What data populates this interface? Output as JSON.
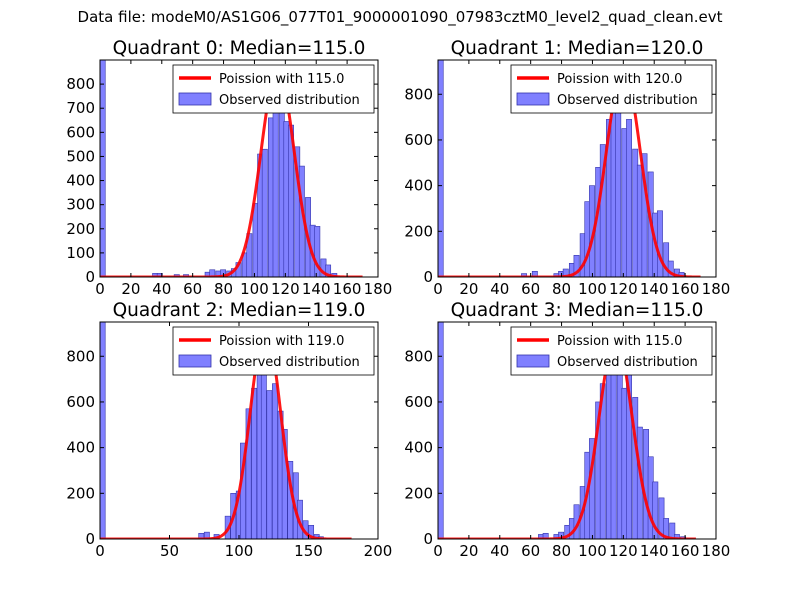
{
  "suptitle": "Data file: modeM0/AS1G06_077T01_9000001090_07983cztM0_level2_quad_clean.evt",
  "colors": {
    "bar_fill": "#8080ff",
    "bar_edge": "#3333aa",
    "fit_line": "#ff0000",
    "legend_line": "#ff0000"
  },
  "chart_data": [
    {
      "type": "bar",
      "title": "Quadrant 0: Median=115.0",
      "legend": [
        "Poission with 115.0",
        "Observed distribution"
      ],
      "xlim": [
        0,
        180
      ],
      "ylim": [
        0,
        900
      ],
      "xticks": [
        0,
        20,
        40,
        60,
        80,
        100,
        120,
        140,
        160,
        180
      ],
      "yticks": [
        0,
        100,
        200,
        300,
        400,
        500,
        600,
        700,
        800
      ],
      "bin_width": 3.4,
      "bins": [
        [
          0,
          900
        ],
        [
          34,
          15
        ],
        [
          37,
          15
        ],
        [
          48,
          10
        ],
        [
          54,
          10
        ],
        [
          68,
          20
        ],
        [
          71,
          30
        ],
        [
          75,
          25
        ],
        [
          78,
          30
        ],
        [
          82,
          25
        ],
        [
          85,
          35
        ],
        [
          88,
          60
        ],
        [
          92,
          100
        ],
        [
          95,
          180
        ],
        [
          99,
          305
        ],
        [
          102,
          510
        ],
        [
          105,
          530
        ],
        [
          109,
          660
        ],
        [
          112,
          690
        ],
        [
          116,
          800
        ],
        [
          119,
          645
        ],
        [
          122,
          630
        ],
        [
          126,
          540
        ],
        [
          129,
          460
        ],
        [
          133,
          330
        ],
        [
          136,
          215
        ],
        [
          139,
          210
        ],
        [
          143,
          75
        ],
        [
          146,
          50
        ],
        [
          150,
          15
        ]
      ],
      "fit_mean": 115.0,
      "fit_amp": 860,
      "fit_range": [
        0,
        170
      ]
    },
    {
      "type": "bar",
      "title": "Quadrant 1: Median=120.0",
      "legend": [
        "Poission with 120.0",
        "Observed distribution"
      ],
      "xlim": [
        0,
        180
      ],
      "ylim": [
        0,
        950
      ],
      "xticks": [
        0,
        20,
        40,
        60,
        80,
        100,
        120,
        140,
        160,
        180
      ],
      "yticks": [
        0,
        200,
        400,
        600,
        800
      ],
      "bin_width": 3.4,
      "bins": [
        [
          0,
          950
        ],
        [
          54,
          15
        ],
        [
          61,
          25
        ],
        [
          75,
          15
        ],
        [
          78,
          25
        ],
        [
          81,
          35
        ],
        [
          85,
          60
        ],
        [
          88,
          95
        ],
        [
          92,
          190
        ],
        [
          95,
          330
        ],
        [
          98,
          400
        ],
        [
          102,
          480
        ],
        [
          105,
          580
        ],
        [
          109,
          690
        ],
        [
          112,
          800
        ],
        [
          115,
          820
        ],
        [
          119,
          650
        ],
        [
          122,
          690
        ],
        [
          126,
          560
        ],
        [
          129,
          490
        ],
        [
          132,
          540
        ],
        [
          136,
          460
        ],
        [
          139,
          280
        ],
        [
          142,
          290
        ],
        [
          146,
          150
        ],
        [
          149,
          70
        ],
        [
          153,
          35
        ],
        [
          156,
          20
        ]
      ],
      "fit_mean": 120.0,
      "fit_amp": 910,
      "fit_range": [
        0,
        170
      ]
    },
    {
      "type": "bar",
      "title": "Quadrant 2: Median=119.0",
      "legend": [
        "Poission with 119.0",
        "Observed distribution"
      ],
      "xlim": [
        0,
        200
      ],
      "ylim": [
        0,
        950
      ],
      "xticks": [
        0,
        50,
        100,
        150,
        200
      ],
      "yticks": [
        0,
        200,
        400,
        600,
        800
      ],
      "bin_width": 3.75,
      "bins": [
        [
          0,
          950
        ],
        [
          71,
          25
        ],
        [
          75,
          30
        ],
        [
          82,
          20
        ],
        [
          90,
          100
        ],
        [
          94,
          200
        ],
        [
          98,
          210
        ],
        [
          101,
          420
        ],
        [
          105,
          570
        ],
        [
          109,
          660
        ],
        [
          113,
          750
        ],
        [
          116,
          790
        ],
        [
          120,
          650
        ],
        [
          124,
          680
        ],
        [
          128,
          560
        ],
        [
          131,
          480
        ],
        [
          135,
          340
        ],
        [
          139,
          290
        ],
        [
          142,
          170
        ],
        [
          146,
          80
        ],
        [
          150,
          60
        ],
        [
          154,
          20
        ],
        [
          157,
          10
        ]
      ],
      "fit_mean": 119.0,
      "fit_amp": 920,
      "fit_range": [
        0,
        181
      ]
    },
    {
      "type": "bar",
      "title": "Quadrant 3: Median=115.0",
      "legend": [
        "Poission with 115.0",
        "Observed distribution"
      ],
      "xlim": [
        0,
        180
      ],
      "ylim": [
        0,
        950
      ],
      "xticks": [
        0,
        20,
        40,
        60,
        80,
        100,
        120,
        140,
        160,
        180
      ],
      "yticks": [
        0,
        200,
        400,
        600,
        800
      ],
      "bin_width": 3.4,
      "bins": [
        [
          0,
          950
        ],
        [
          65,
          20
        ],
        [
          68,
          25
        ],
        [
          75,
          20
        ],
        [
          78,
          30
        ],
        [
          82,
          60
        ],
        [
          85,
          90
        ],
        [
          88,
          150
        ],
        [
          92,
          230
        ],
        [
          95,
          380
        ],
        [
          98,
          440
        ],
        [
          102,
          600
        ],
        [
          105,
          680
        ],
        [
          109,
          790
        ],
        [
          112,
          770
        ],
        [
          116,
          720
        ],
        [
          119,
          660
        ],
        [
          122,
          730
        ],
        [
          126,
          620
        ],
        [
          129,
          490
        ],
        [
          133,
          480
        ],
        [
          136,
          360
        ],
        [
          139,
          250
        ],
        [
          143,
          180
        ],
        [
          146,
          90
        ],
        [
          150,
          70
        ],
        [
          153,
          20
        ],
        [
          157,
          10
        ]
      ],
      "fit_mean": 115.0,
      "fit_amp": 880,
      "fit_range": [
        0,
        167
      ]
    }
  ]
}
